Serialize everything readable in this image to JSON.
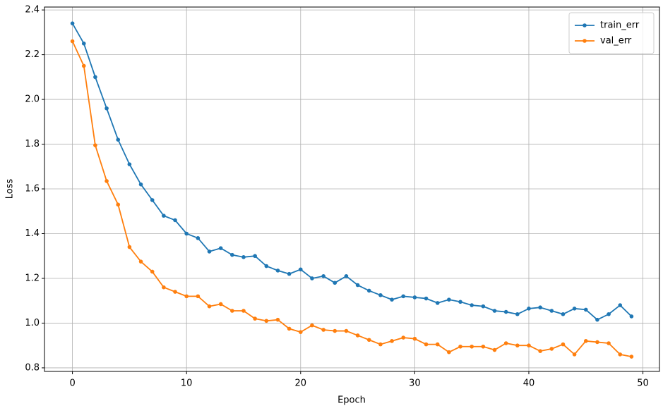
{
  "chart_data": {
    "type": "line",
    "xlabel": "Epoch",
    "ylabel": "Loss",
    "x": [
      0,
      1,
      2,
      3,
      4,
      5,
      6,
      7,
      8,
      9,
      10,
      11,
      12,
      13,
      14,
      15,
      16,
      17,
      18,
      19,
      20,
      21,
      22,
      23,
      24,
      25,
      26,
      27,
      28,
      29,
      30,
      31,
      32,
      33,
      34,
      35,
      36,
      37,
      38,
      39,
      40,
      41,
      42,
      43,
      44,
      45,
      46,
      47,
      48,
      49
    ],
    "series": [
      {
        "name": "train_err",
        "color": "#1f77b4",
        "values": [
          2.34,
          2.25,
          2.1,
          1.96,
          1.82,
          1.71,
          1.62,
          1.55,
          1.48,
          1.46,
          1.4,
          1.38,
          1.32,
          1.335,
          1.305,
          1.295,
          1.3,
          1.255,
          1.235,
          1.22,
          1.24,
          1.2,
          1.21,
          1.18,
          1.21,
          1.17,
          1.145,
          1.125,
          1.105,
          1.12,
          1.115,
          1.11,
          1.09,
          1.105,
          1.095,
          1.08,
          1.075,
          1.055,
          1.05,
          1.04,
          1.065,
          1.07,
          1.055,
          1.04,
          1.065,
          1.06,
          1.015,
          1.04,
          1.08,
          1.03
        ]
      },
      {
        "name": "val_err",
        "color": "#ff7f0e",
        "values": [
          2.26,
          2.15,
          1.795,
          1.635,
          1.53,
          1.34,
          1.275,
          1.23,
          1.16,
          1.14,
          1.12,
          1.12,
          1.075,
          1.085,
          1.055,
          1.055,
          1.02,
          1.01,
          1.015,
          0.975,
          0.96,
          0.99,
          0.97,
          0.965,
          0.965,
          0.945,
          0.925,
          0.905,
          0.92,
          0.935,
          0.93,
          0.905,
          0.905,
          0.87,
          0.895,
          0.895,
          0.895,
          0.88,
          0.91,
          0.9,
          0.9,
          0.875,
          0.885,
          0.905,
          0.86,
          0.92,
          0.915,
          0.91,
          0.86,
          0.85
        ]
      }
    ],
    "xlim": [
      -2.45,
      51.45
    ],
    "xticks": [
      0,
      10,
      20,
      30,
      40,
      50
    ],
    "ylim": [
      0.784,
      2.413
    ],
    "yticks": [
      0.8,
      {
        "value": 1,
        "label": "1.0"
      },
      1.2,
      1.4,
      1.6,
      1.8,
      {
        "value": 2,
        "label": "2.0"
      },
      2.2,
      2.4
    ],
    "grid": true,
    "legend": "upper right"
  }
}
